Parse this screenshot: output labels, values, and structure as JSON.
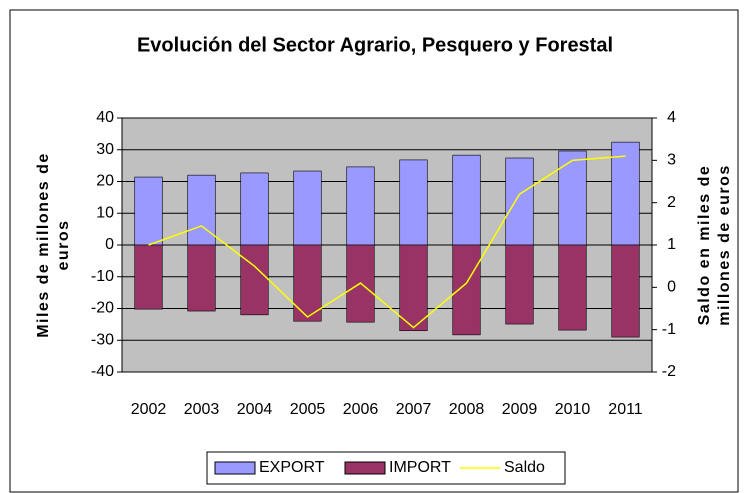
{
  "chart_data": {
    "type": "bar-line",
    "title": "Evolución del Sector Agrario, Pesquero y Forestal",
    "ylabel": [
      "Miles de millones de",
      "euros"
    ],
    "y2label": [
      "Saldo en miles de",
      "millones de euros"
    ],
    "categories": [
      "2002",
      "2003",
      "2004",
      "2005",
      "2006",
      "2007",
      "2008",
      "2009",
      "2010",
      "2011"
    ],
    "series": [
      {
        "name": "EXPORT",
        "type": "bar",
        "color": "#9999ff",
        "values": [
          21.4,
          22,
          22.7,
          23.3,
          24.6,
          26.8,
          28.3,
          27.4,
          29.6,
          32.4
        ]
      },
      {
        "name": "IMPORT",
        "type": "bar",
        "color": "#993366",
        "values": [
          -20.2,
          -20.8,
          -22,
          -24,
          -24.3,
          -27,
          -28.3,
          -24.9,
          -26.8,
          -29
        ]
      },
      {
        "name": "Saldo",
        "type": "line",
        "axis": "y2",
        "color": "#ffff00",
        "values": [
          1.0,
          1.45,
          0.5,
          -0.7,
          0.1,
          -0.95,
          0.1,
          2.2,
          3.0,
          3.1
        ]
      }
    ],
    "ylim": [
      -40,
      40
    ],
    "yticks": [
      -40,
      -30,
      -20,
      -10,
      0,
      10,
      20,
      30,
      40
    ],
    "y2lim": [
      -2,
      4
    ],
    "y2ticks": [
      -2,
      -1,
      0,
      1,
      2,
      3,
      4
    ],
    "grid": true,
    "legend": "bottom"
  }
}
